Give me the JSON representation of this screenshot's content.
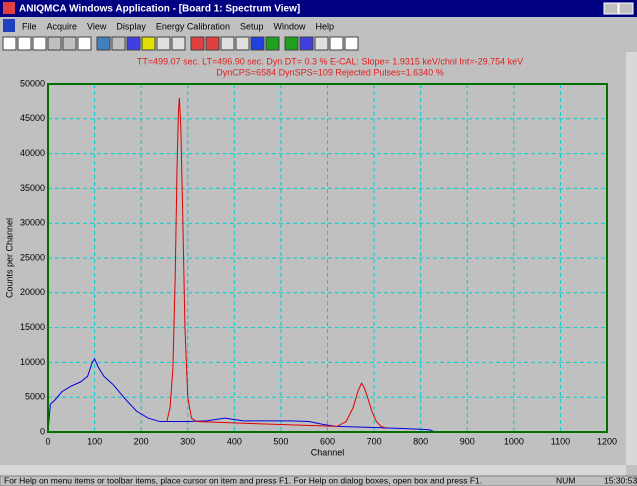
{
  "window": {
    "title": "ANIQMCA Windows Application - [Board 1: Spectrum View]",
    "menu": [
      "File",
      "Acquire",
      "View",
      "Display",
      "Energy Calibration",
      "Setup",
      "Window",
      "Help"
    ],
    "status": {
      "help": "For Help on menu items or toolbar items, place cursor on item and press F1.  For Help on dialog boxes, open box and press F1.",
      "num": "NUM",
      "time": "15:30:53"
    }
  },
  "chart_data": {
    "type": "line",
    "info": [
      "TT=499.07 sec.  LT=496.90 sec.  Dyn DT=  0.3 %    E-CAL:  Slope= 1.9315 keV/chnl   Int=-29.754 keV",
      "DynCPS=6584  DynSPS=109  Rejected Pulses=1.6340 %"
    ],
    "x_label": "Channel",
    "y_label": "Counts per Channel",
    "xlim": [
      0,
      1200
    ],
    "xticks": [
      0,
      100,
      200,
      300,
      400,
      500,
      600,
      700,
      800,
      900,
      1000,
      1100,
      1200
    ],
    "ylim": [
      0,
      50000
    ],
    "yticks": [
      0,
      5000,
      10000,
      15000,
      20000,
      25000,
      30000,
      35000,
      40000,
      45000,
      50000
    ],
    "grid": true,
    "background": "#c0c0c0",
    "frame_color": "#007000",
    "grid_color": "#00d0d0",
    "series": [
      {
        "color": "#0000e0",
        "x": [
          0,
          5,
          15,
          30,
          50,
          70,
          85,
          95,
          100,
          108,
          120,
          140,
          165,
          190,
          215,
          240,
          258,
          300,
          340,
          380,
          420,
          470,
          520,
          560,
          590,
          620,
          720,
          760,
          800,
          820,
          830
        ],
        "values": [
          0,
          4000,
          4600,
          5800,
          6600,
          7200,
          8000,
          10000,
          10500,
          9300,
          8000,
          6800,
          4800,
          3000,
          2000,
          1500,
          1500,
          1500,
          1600,
          2000,
          1600,
          1600,
          1600,
          1500,
          1100,
          800,
          600,
          500,
          400,
          300,
          0
        ]
      },
      {
        "color": "#e00000",
        "x": [
          255,
          262,
          268,
          273,
          277,
          280,
          282,
          285,
          289,
          294,
          300,
          308,
          318,
          620,
          640,
          655,
          665,
          673,
          678,
          686,
          695,
          705,
          715,
          725
        ],
        "values": [
          1500,
          3500,
          9000,
          22000,
          38000,
          46000,
          48000,
          44000,
          32000,
          15000,
          5000,
          2000,
          1500,
          800,
          1500,
          3500,
          5800,
          7000,
          6500,
          5000,
          3000,
          1500,
          800,
          600
        ]
      }
    ]
  }
}
